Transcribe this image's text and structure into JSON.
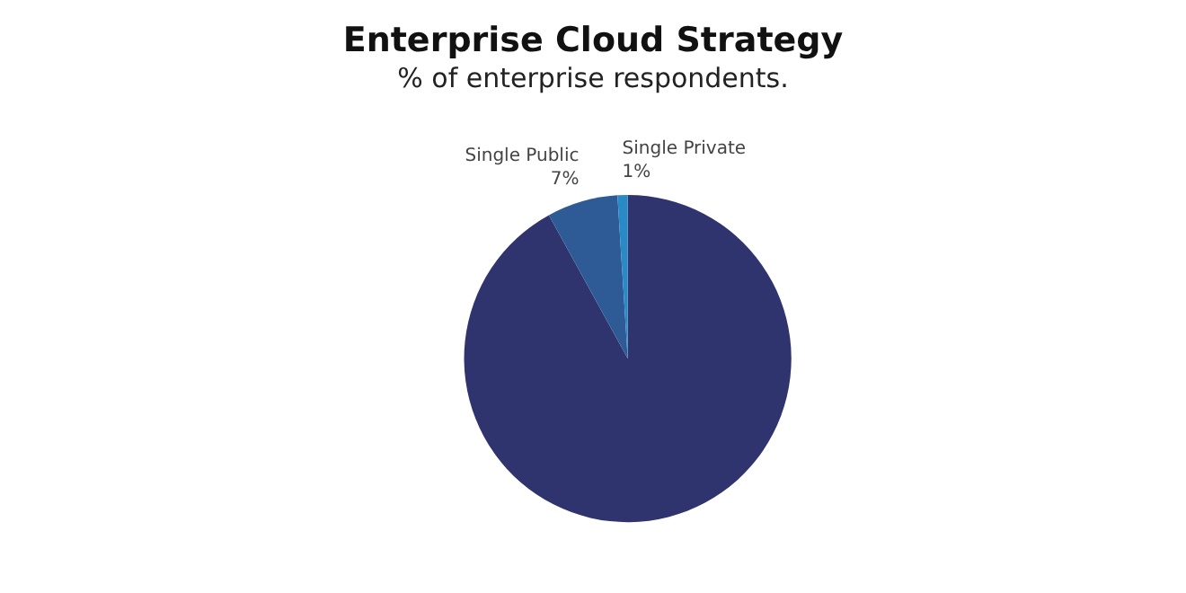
{
  "chart_data": {
    "type": "pie",
    "title": "Enterprise Cloud Strategy",
    "subtitle": "% of enterprise respondents.",
    "categories": [
      null,
      "Single Public",
      "Single Private"
    ],
    "values": [
      92,
      7,
      1
    ],
    "value_labels": [
      null,
      "7%",
      "1%"
    ],
    "colors": [
      "#30346e",
      "#2e5b96",
      "#2a8ac6"
    ]
  }
}
